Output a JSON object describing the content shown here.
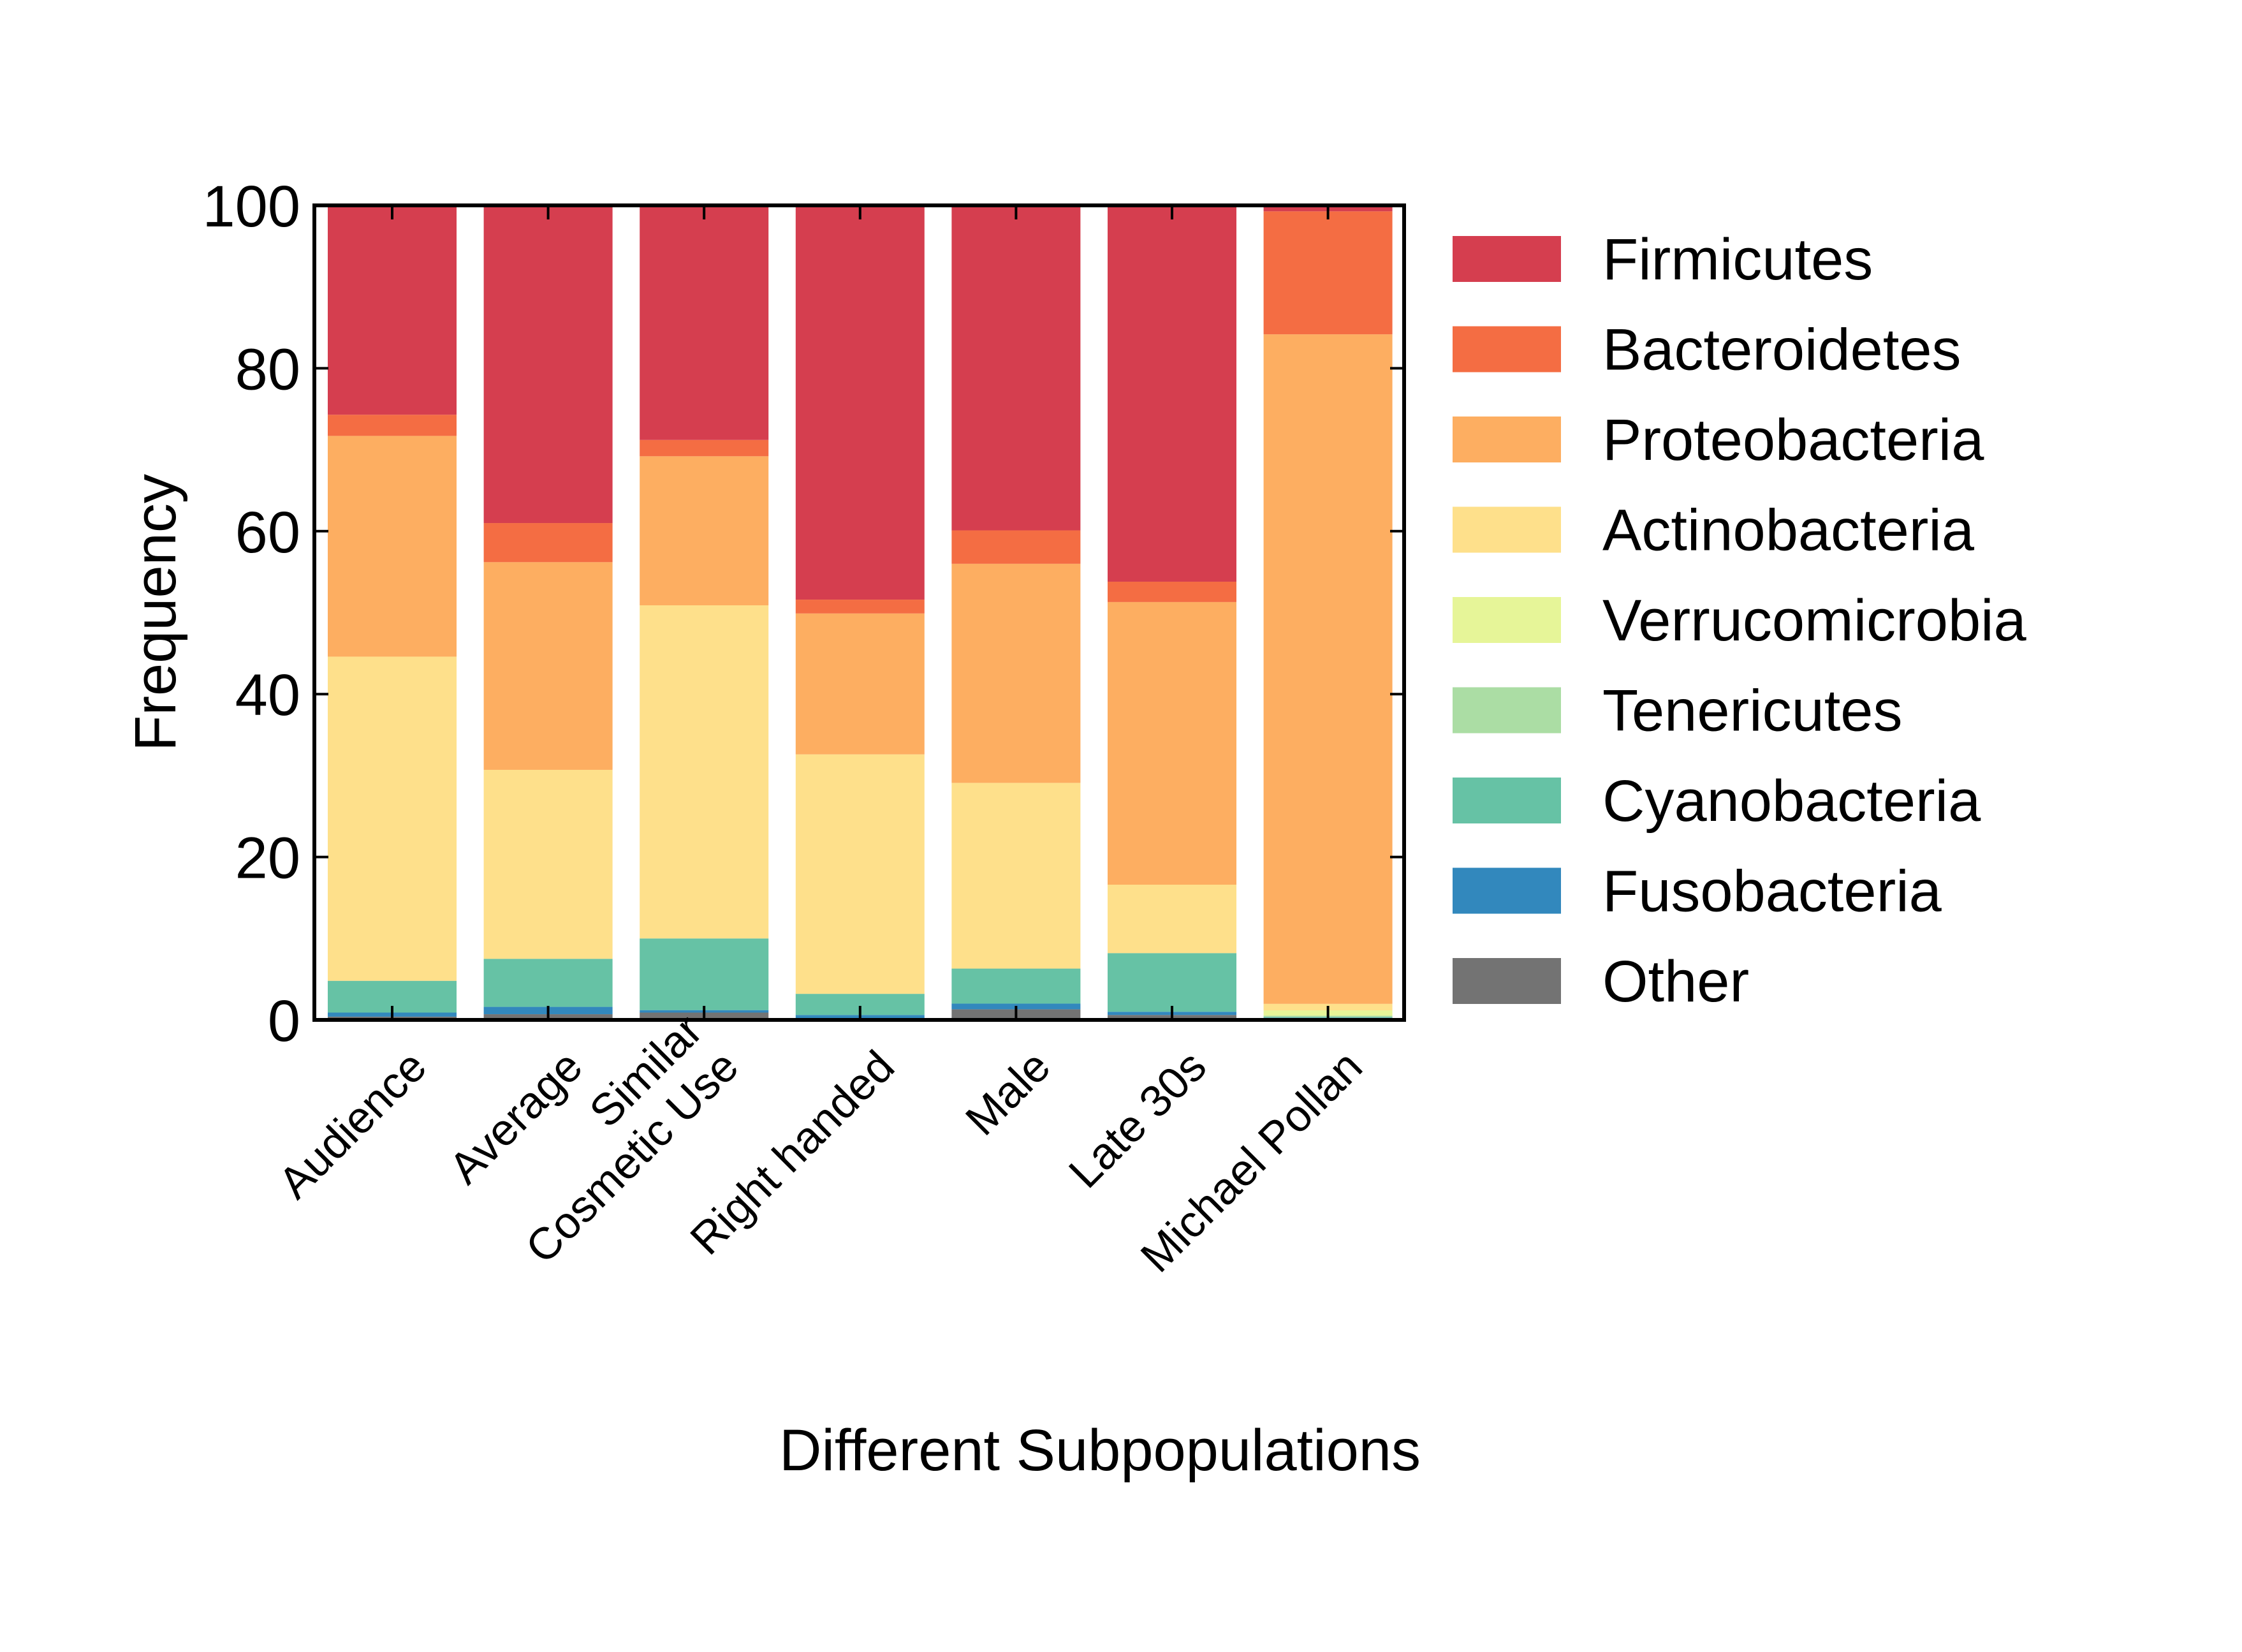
{
  "chart_data": {
    "type": "bar",
    "stacked": true,
    "title": "",
    "xlabel": "Different Subpopulations",
    "ylabel": "Frequency",
    "ylim": [
      0,
      100
    ],
    "yticks": [
      0,
      20,
      40,
      60,
      80,
      100
    ],
    "grid": false,
    "legend_position": "right",
    "categories": [
      "Audience",
      "Average",
      "Similar\nCosmetic Use",
      "Right handed",
      "Male",
      "Late 30s",
      "Michael Pollan"
    ],
    "series": [
      {
        "name": "Firmicutes",
        "color": "#d53e4f",
        "values": [
          25.7,
          39.0,
          28.8,
          48.4,
          39.9,
          46.2,
          0.7
        ]
      },
      {
        "name": "Bacteroidetes",
        "color": "#f46d43",
        "values": [
          2.6,
          4.8,
          2.0,
          1.7,
          4.1,
          2.5,
          15.1
        ]
      },
      {
        "name": "Proteobacteria",
        "color": "#fdae61",
        "values": [
          27.1,
          25.5,
          18.3,
          17.3,
          26.9,
          34.7,
          82.2
        ]
      },
      {
        "name": "Actinobacteria",
        "color": "#fee08b",
        "values": [
          39.8,
          23.2,
          40.9,
          29.4,
          22.8,
          8.4,
          0.8
        ]
      },
      {
        "name": "Verrucomicrobia",
        "color": "#e6f598",
        "values": [
          0.0,
          0.0,
          0.0,
          0.0,
          0.0,
          0.0,
          0.65
        ]
      },
      {
        "name": "Tenericutes",
        "color": "#abdda4",
        "values": [
          0.0,
          0.0,
          0.0,
          0.0,
          0.0,
          0.0,
          0.15
        ]
      },
      {
        "name": "Cyanobacteria",
        "color": "#66c2a5",
        "values": [
          3.9,
          5.9,
          8.8,
          2.6,
          4.3,
          7.2,
          0.1
        ]
      },
      {
        "name": "Fusobacteria",
        "color": "#3288bd",
        "values": [
          0.5,
          0.9,
          0.3,
          0.4,
          0.7,
          0.4,
          0.02
        ]
      },
      {
        "name": "Other",
        "color": "#737373",
        "values": [
          0.4,
          0.7,
          0.9,
          0.2,
          1.3,
          0.6,
          0.25
        ]
      }
    ]
  }
}
